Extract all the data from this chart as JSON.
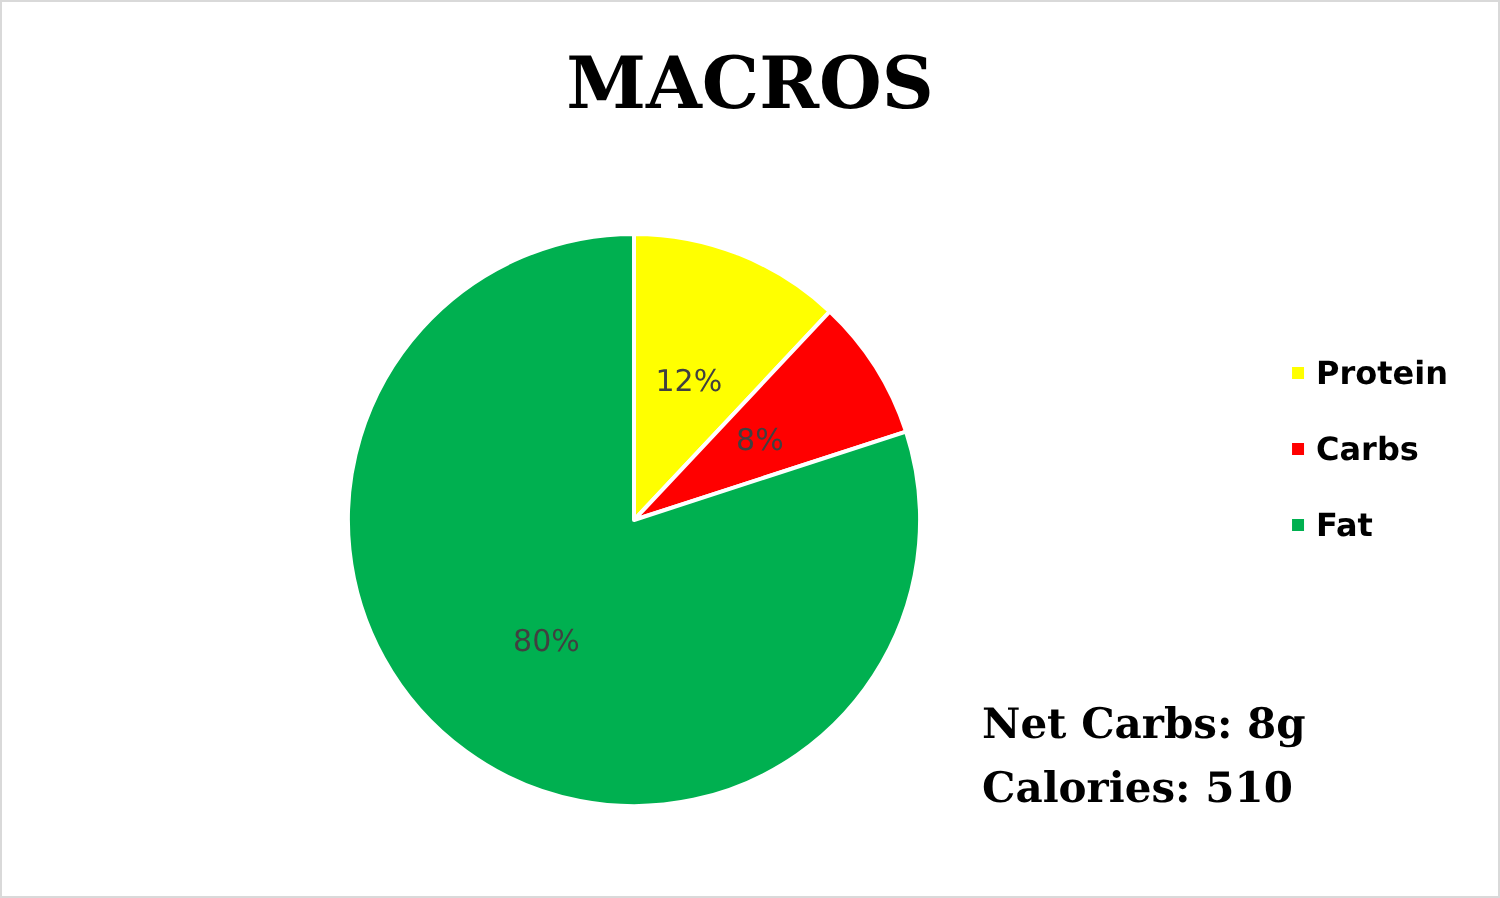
{
  "chart_data": {
    "type": "pie",
    "title": "MACROS",
    "categories": [
      "Protein",
      "Carbs",
      "Fat"
    ],
    "values": [
      12,
      8,
      80
    ],
    "value_labels": [
      "12%",
      "8%",
      "80%"
    ],
    "colors": [
      "#ffff00",
      "#ff0000",
      "#00b050"
    ],
    "legend": "right",
    "annotations": [
      "Net Carbs: 8g",
      "Calories: 510"
    ]
  }
}
